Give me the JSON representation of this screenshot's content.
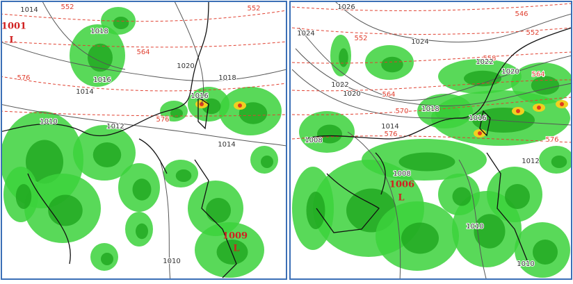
{
  "panels": [
    {
      "labels": [
        {
          "text": "1001",
          "color": "#d02020"
        },
        {
          "text": "L",
          "color": "#d02020"
        },
        {
          "text": "1014",
          "color": "#333333"
        },
        {
          "text": "552",
          "color": "#e04030"
        },
        {
          "text": "552",
          "color": "#e04030"
        },
        {
          "text": "1018",
          "color": "#333333"
        },
        {
          "text": "564",
          "color": "#e04030"
        },
        {
          "text": "1020",
          "color": "#333333"
        },
        {
          "text": "1016",
          "color": "#333333"
        },
        {
          "text": "1018",
          "color": "#333333"
        },
        {
          "text": "1014",
          "color": "#333333"
        },
        {
          "text": "576",
          "color": "#e04030"
        },
        {
          "text": "1016",
          "color": "#333333"
        },
        {
          "text": "576",
          "color": "#e04030"
        },
        {
          "text": "1010",
          "color": "#333333"
        },
        {
          "text": "1012",
          "color": "#333333"
        },
        {
          "text": "1014",
          "color": "#333333"
        },
        {
          "text": "1010",
          "color": "#333333"
        },
        {
          "text": "1009",
          "color": "#d02020"
        },
        {
          "text": "L",
          "color": "#d02020"
        }
      ]
    },
    {
      "labels": [
        {
          "text": "1026",
          "color": "#333333"
        },
        {
          "text": "546",
          "color": "#e04030"
        },
        {
          "text": "1024",
          "color": "#333333"
        },
        {
          "text": "552",
          "color": "#e04030"
        },
        {
          "text": "552",
          "color": "#e04030"
        },
        {
          "text": "1024",
          "color": "#333333"
        },
        {
          "text": "558",
          "color": "#e04030"
        },
        {
          "text": "1022",
          "color": "#333333"
        },
        {
          "text": "1020",
          "color": "#333333"
        },
        {
          "text": "564",
          "color": "#e04030"
        },
        {
          "text": "1022",
          "color": "#333333"
        },
        {
          "text": "1020",
          "color": "#333333"
        },
        {
          "text": "564",
          "color": "#e04030"
        },
        {
          "text": "570",
          "color": "#e04030"
        },
        {
          "text": "1018",
          "color": "#333333"
        },
        {
          "text": "1016",
          "color": "#333333"
        },
        {
          "text": "1014",
          "color": "#333333"
        },
        {
          "text": "576",
          "color": "#e04030"
        },
        {
          "text": "1008",
          "color": "#333333"
        },
        {
          "text": "1008",
          "color": "#333333"
        },
        {
          "text": "1006",
          "color": "#d02020"
        },
        {
          "text": "L",
          "color": "#d02020"
        },
        {
          "text": "576",
          "color": "#e04030"
        },
        {
          "text": "1012",
          "color": "#333333"
        },
        {
          "text": "1010",
          "color": "#333333"
        },
        {
          "text": "1010",
          "color": "#333333"
        }
      ]
    }
  ]
}
